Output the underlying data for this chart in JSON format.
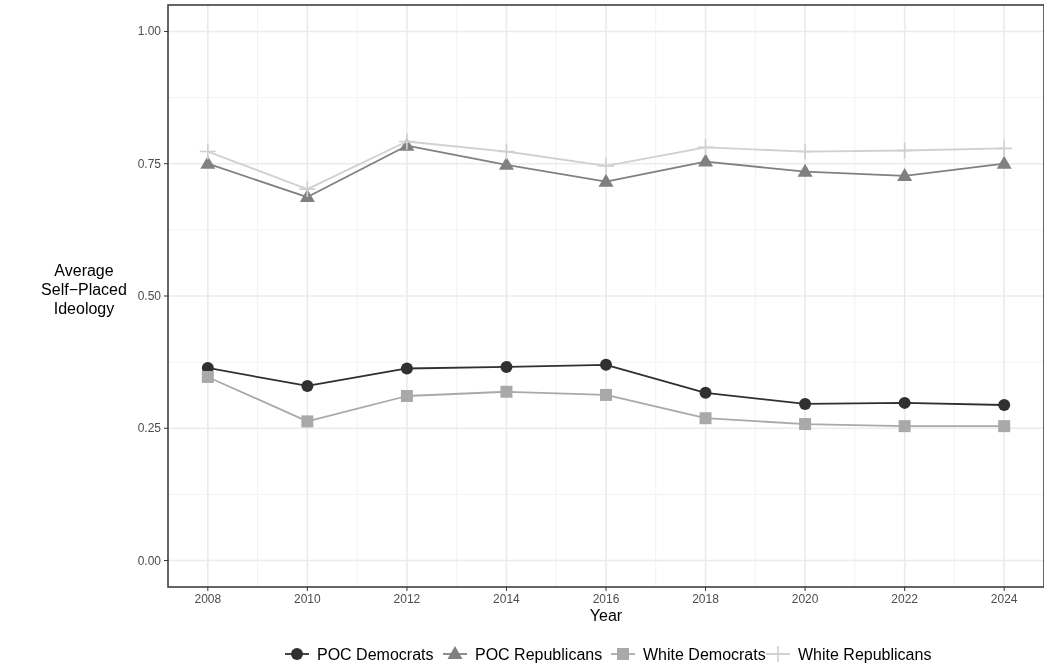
{
  "chart_data": {
    "type": "line",
    "xlabel": "Year",
    "ylabel": "Average Self−Placed Ideology",
    "x": [
      2008,
      2010,
      2012,
      2014,
      2016,
      2018,
      2020,
      2022,
      2024
    ],
    "series": [
      {
        "name": "POC Democrats",
        "color": "#303030",
        "marker": "circle",
        "values": [
          0.364,
          0.33,
          0.363,
          0.366,
          0.37,
          0.317,
          0.296,
          0.298,
          0.294
        ]
      },
      {
        "name": "POC Republicans",
        "color": "#808080",
        "marker": "triangle",
        "values": [
          0.75,
          0.687,
          0.784,
          0.748,
          0.716,
          0.754,
          0.735,
          0.727,
          0.75
        ]
      },
      {
        "name": "White Democrats",
        "color": "#a9a9a9",
        "marker": "square",
        "values": [
          0.347,
          0.263,
          0.311,
          0.319,
          0.313,
          0.269,
          0.258,
          0.254,
          0.254
        ]
      },
      {
        "name": "White Republicans",
        "color": "#d0d0d0",
        "marker": "cross",
        "values": [
          0.773,
          0.702,
          0.792,
          0.773,
          0.746,
          0.781,
          0.773,
          0.775,
          0.779
        ]
      }
    ],
    "xlim": [
      2007.2,
      2024.8
    ],
    "ylim": [
      -0.05,
      1.05
    ],
    "xticks": [
      2008,
      2010,
      2012,
      2014,
      2016,
      2018,
      2020,
      2022,
      2024
    ],
    "yticks": [
      {
        "value": 0,
        "label": "0.00"
      },
      {
        "value": 0.25,
        "label": "0.25"
      },
      {
        "value": 0.5,
        "label": "0.50"
      },
      {
        "value": 0.75,
        "label": "0.75"
      },
      {
        "value": 1,
        "label": "1.00"
      }
    ],
    "grid": true,
    "legend": "bottom"
  }
}
